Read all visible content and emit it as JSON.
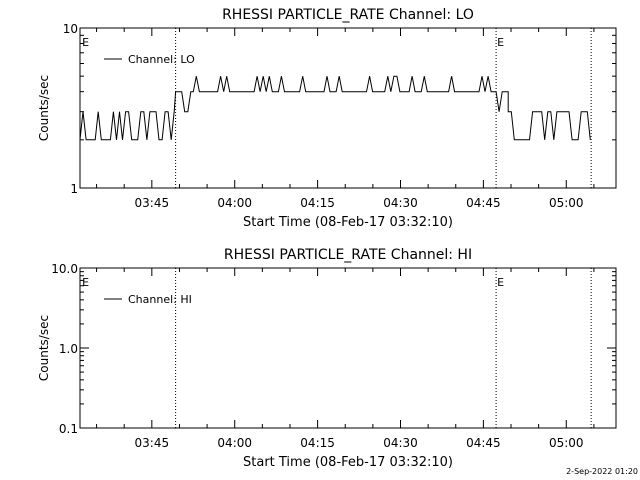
{
  "footer": {
    "timestamp": "2-Sep-2022 01:20"
  },
  "chart_data": [
    {
      "type": "line",
      "title": "RHESSI PARTICLE_RATE Channel: LO",
      "xlabel": "Start Time (08-Feb-17 03:32:10)",
      "ylabel": "Counts/sec",
      "y_scale": "log",
      "ylim": [
        1,
        10
      ],
      "y_ticks": [
        {
          "v": 1,
          "label": "1"
        },
        {
          "v": 10,
          "label": "10"
        }
      ],
      "x_range_min": [
        0,
        97
      ],
      "x_ticks": [
        {
          "t": 13,
          "label": "03:45"
        },
        {
          "t": 28,
          "label": "04:00"
        },
        {
          "t": 43,
          "label": "04:15"
        },
        {
          "t": 58,
          "label": "04:30"
        },
        {
          "t": 73,
          "label": "04:45"
        },
        {
          "t": 88,
          "label": "05:00"
        }
      ],
      "vlines": [
        17.3,
        75.3,
        92.5
      ],
      "markers": [
        {
          "t": 0.2,
          "label": "E"
        },
        {
          "t": 75.3,
          "label": "E"
        }
      ],
      "legend": {
        "label": "Channel: LO",
        "position": "top-left"
      },
      "series": [
        {
          "name": "Channel: LO",
          "segments": [
            {
              "t0": 0,
              "t1": 17.3,
              "low": 2,
              "high": 3
            },
            {
              "t0": 17.3,
              "t1": 20.5,
              "low": 3,
              "high": 4
            },
            {
              "t0": 20.5,
              "t1": 75.3,
              "low": 4,
              "high": 5
            },
            {
              "t0": 75.3,
              "t1": 77.5,
              "low": 3,
              "high": 4
            },
            {
              "t0": 77.5,
              "t1": 92.5,
              "low": 2,
              "high": 3
            }
          ]
        }
      ]
    },
    {
      "type": "line",
      "title": "RHESSI PARTICLE_RATE Channel: HI",
      "xlabel": "Start Time (08-Feb-17 03:32:10)",
      "ylabel": "Counts/sec",
      "y_scale": "log",
      "ylim": [
        0.1,
        10
      ],
      "y_ticks": [
        {
          "v": 0.1,
          "label": "0.1"
        },
        {
          "v": 1,
          "label": "1.0"
        },
        {
          "v": 10,
          "label": "10.0"
        }
      ],
      "x_range_min": [
        0,
        97
      ],
      "x_ticks": [
        {
          "t": 13,
          "label": "03:45"
        },
        {
          "t": 28,
          "label": "04:00"
        },
        {
          "t": 43,
          "label": "04:15"
        },
        {
          "t": 58,
          "label": "04:30"
        },
        {
          "t": 73,
          "label": "04:45"
        },
        {
          "t": 88,
          "label": "05:00"
        }
      ],
      "vlines": [
        17.3,
        75.3,
        92.5
      ],
      "markers": [
        {
          "t": 0.2,
          "label": "E"
        },
        {
          "t": 75.3,
          "label": "E"
        }
      ],
      "legend": {
        "label": "Channel: HI",
        "position": "top-left"
      },
      "series": [
        {
          "name": "Channel: HI",
          "segments": []
        }
      ]
    }
  ]
}
